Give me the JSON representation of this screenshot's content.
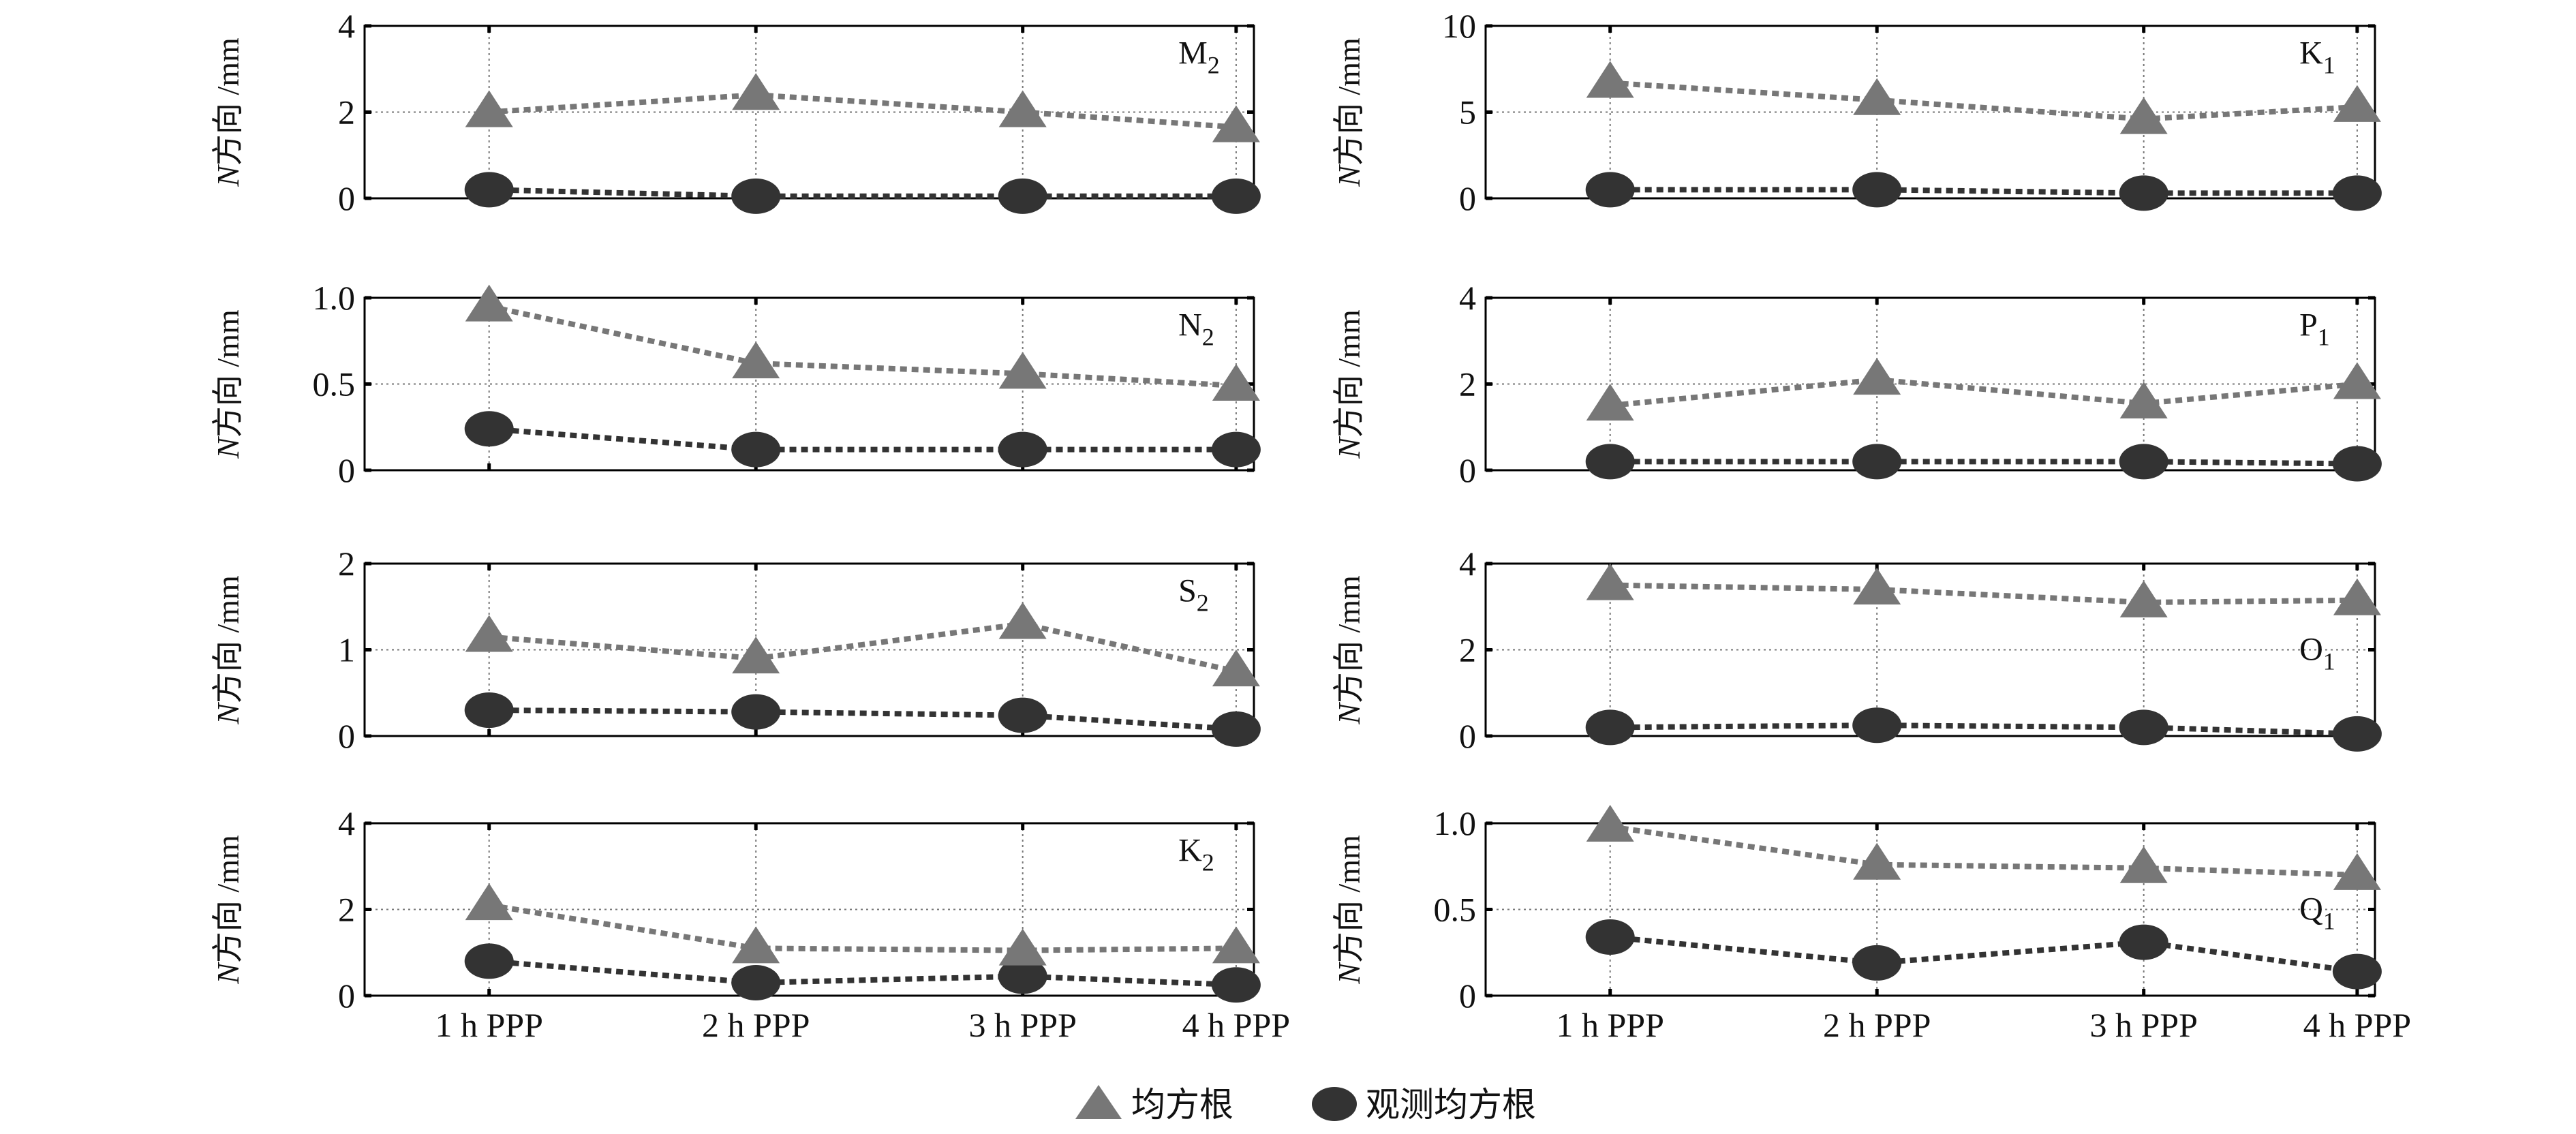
{
  "chart_data": {
    "type": "line",
    "x_categories": [
      "1 h PPP",
      "2 h PPP",
      "3 h PPP",
      "4 h PPP"
    ],
    "ylabel_var": "N",
    "ylabel_text": "方向 /mm",
    "legend": [
      {
        "name": "均方根",
        "marker": "triangle",
        "color": "#777777"
      },
      {
        "name": "观测均方根",
        "marker": "circle",
        "color": "#333333"
      }
    ],
    "colors": {
      "rms": "#777777",
      "obs": "#333333"
    },
    "panels": [
      {
        "label": "M",
        "sub": "2",
        "ylim": [
          0,
          4
        ],
        "yticks": [
          "0",
          "2",
          "4"
        ],
        "tick_values": [
          0,
          2,
          4
        ],
        "rms": [
          2.0,
          2.4,
          2.0,
          1.65
        ],
        "obs": [
          0.2,
          0.05,
          0.05,
          0.05
        ]
      },
      {
        "label": "K",
        "sub": "1",
        "ylim": [
          0,
          10
        ],
        "yticks": [
          "0",
          "5",
          "10"
        ],
        "tick_values": [
          0,
          5,
          10
        ],
        "rms": [
          6.7,
          5.7,
          4.6,
          5.3
        ],
        "obs": [
          0.5,
          0.5,
          0.3,
          0.3
        ]
      },
      {
        "label": "N",
        "sub": "2",
        "ylim": [
          0,
          1.0
        ],
        "yticks": [
          "0",
          "0.5",
          "1.0"
        ],
        "tick_values": [
          0,
          0.5,
          1.0
        ],
        "rms": [
          0.95,
          0.62,
          0.56,
          0.49
        ],
        "obs": [
          0.24,
          0.12,
          0.12,
          0.12
        ]
      },
      {
        "label": "P",
        "sub": "1",
        "ylim": [
          0,
          4
        ],
        "yticks": [
          "0",
          "2",
          "4"
        ],
        "tick_values": [
          0,
          2,
          4
        ],
        "rms": [
          1.5,
          2.1,
          1.55,
          2.0
        ],
        "obs": [
          0.2,
          0.2,
          0.2,
          0.15
        ]
      },
      {
        "label": "S",
        "sub": "2",
        "ylim": [
          0,
          2
        ],
        "yticks": [
          "0",
          "1",
          "2"
        ],
        "tick_values": [
          0,
          1,
          2
        ],
        "rms": [
          1.15,
          0.9,
          1.3,
          0.75
        ],
        "obs": [
          0.3,
          0.28,
          0.24,
          0.08
        ]
      },
      {
        "label": "O",
        "sub": "1",
        "ylim": [
          0,
          4
        ],
        "yticks": [
          "0",
          "2",
          "4"
        ],
        "tick_values": [
          0,
          2,
          4
        ],
        "rms": [
          3.5,
          3.4,
          3.1,
          3.15
        ],
        "obs": [
          0.2,
          0.25,
          0.2,
          0.05
        ]
      },
      {
        "label": "K",
        "sub": "2",
        "ylim": [
          0,
          4
        ],
        "yticks": [
          "0",
          "2",
          "4"
        ],
        "tick_values": [
          0,
          2,
          4
        ],
        "rms": [
          2.1,
          1.1,
          1.05,
          1.1
        ],
        "obs": [
          0.8,
          0.3,
          0.45,
          0.25
        ]
      },
      {
        "label": "Q",
        "sub": "1",
        "ylim": [
          0,
          1.0
        ],
        "yticks": [
          "0",
          "0.5",
          "1.0"
        ],
        "tick_values": [
          0,
          0.5,
          1.0
        ],
        "rms": [
          0.98,
          0.76,
          0.74,
          0.7
        ],
        "obs": [
          0.34,
          0.19,
          0.31,
          0.14
        ]
      }
    ]
  }
}
